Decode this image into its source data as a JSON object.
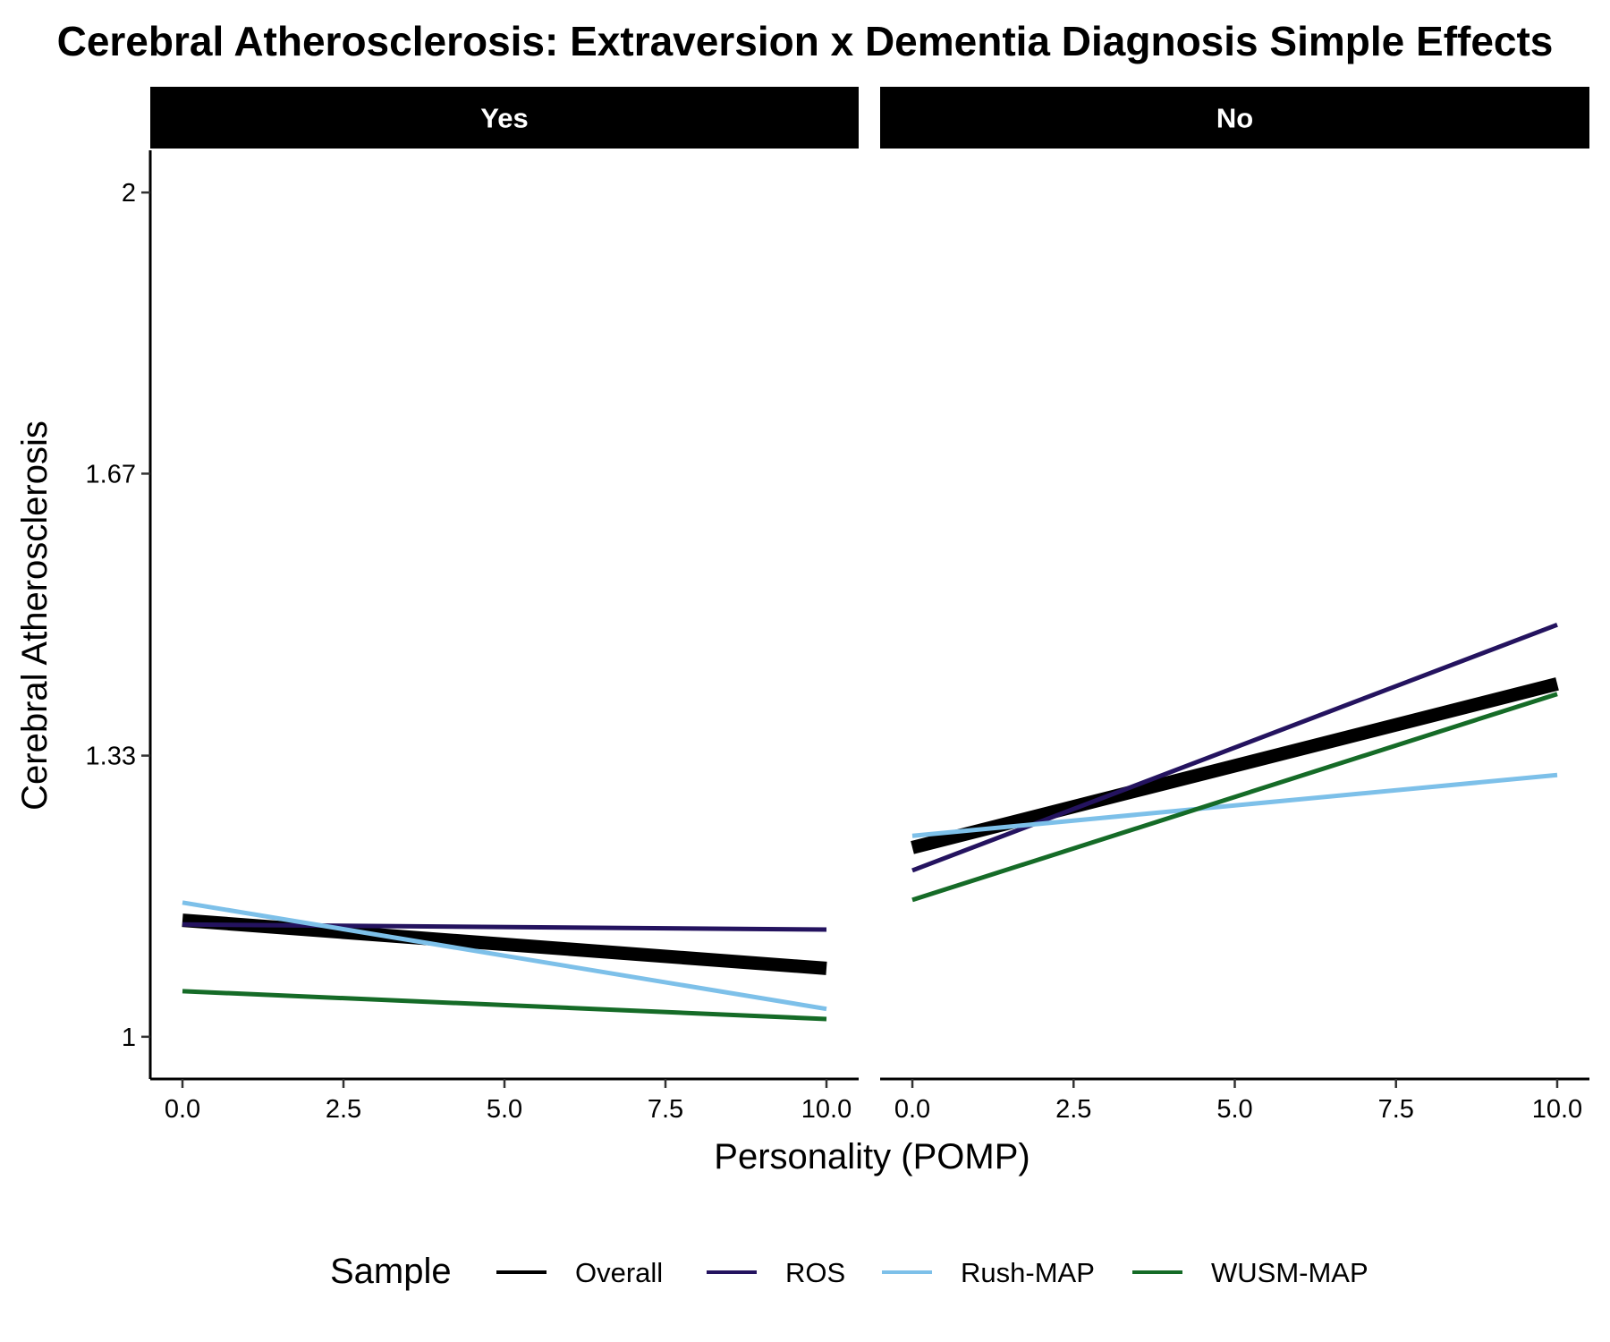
{
  "chart_data": {
    "type": "line",
    "title": "Cerebral Atherosclerosis: Extraversion x Dementia Diagnosis Simple Effects",
    "xlabel": "Personality (POMP)",
    "ylabel": "Cerebral Atherosclerosis",
    "xlim": [
      -0.5,
      10.5
    ],
    "ylim": [
      0.95,
      2.05
    ],
    "x_ticks": [
      0,
      2.5,
      5,
      7.5,
      10
    ],
    "x_tick_labels": [
      "0.0",
      "2.5",
      "5.0",
      "7.5",
      "10.0"
    ],
    "y_ticks": [
      1,
      1.333,
      1.667,
      2
    ],
    "y_tick_labels": [
      "1",
      "1.33",
      "1.67",
      "2"
    ],
    "legend": {
      "title": "Sample",
      "position": "bottom",
      "entries": [
        {
          "name": "Overall",
          "color": "#000000"
        },
        {
          "name": "ROS",
          "color": "#24135F"
        },
        {
          "name": "Rush-MAP",
          "color": "#7DC0E9"
        },
        {
          "name": "WUSM-MAP",
          "color": "#156B27"
        }
      ]
    },
    "panels": [
      {
        "label": "Yes",
        "series": [
          {
            "name": "Overall",
            "x": [
              0,
              10
            ],
            "y": [
              1.138,
              1.081
            ]
          },
          {
            "name": "ROS",
            "x": [
              0,
              10
            ],
            "y": [
              1.133,
              1.127
            ]
          },
          {
            "name": "Rush-MAP",
            "x": [
              0,
              10
            ],
            "y": [
              1.159,
              1.033
            ]
          },
          {
            "name": "WUSM-MAP",
            "x": [
              0,
              10
            ],
            "y": [
              1.054,
              1.021
            ]
          }
        ]
      },
      {
        "label": "No",
        "series": [
          {
            "name": "Overall",
            "x": [
              0,
              10
            ],
            "y": [
              1.224,
              1.418
            ]
          },
          {
            "name": "ROS",
            "x": [
              0,
              10
            ],
            "y": [
              1.197,
              1.488
            ]
          },
          {
            "name": "Rush-MAP",
            "x": [
              0,
              10
            ],
            "y": [
              1.238,
              1.31
            ]
          },
          {
            "name": "WUSM-MAP",
            "x": [
              0,
              10
            ],
            "y": [
              1.162,
              1.406
            ]
          }
        ]
      }
    ]
  }
}
